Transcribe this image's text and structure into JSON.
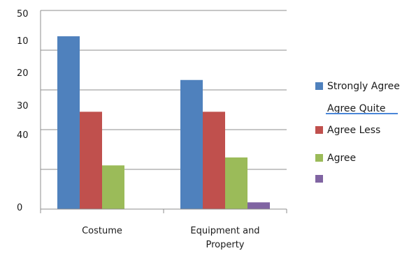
{
  "chart_data": {
    "type": "bar",
    "categories": [
      "Costume",
      "Equipment and Property"
    ],
    "category_lines": [
      [
        "Costume"
      ],
      [
        "Equipment and",
        "Property"
      ]
    ],
    "series": [
      {
        "name": "Strongly Agree",
        "color": "#4F81BD",
        "values": [
          43.5,
          32.5
        ]
      },
      {
        "name": "Agree  Quite",
        "color": "#C0504D",
        "values": [
          24.5,
          24.5
        ]
      },
      {
        "name": "Agree Less",
        "color": "#9BBB59",
        "values": [
          11.0,
          13.0
        ]
      },
      {
        "name": "Agree",
        "color": "#8064A2",
        "values": [
          0,
          1.7
        ]
      }
    ],
    "legend_rows": [
      {
        "marker_color": "#4F81BD",
        "text": "Strongly Agree"
      },
      {
        "marker_color": null,
        "text": "Agree  Quite"
      },
      {
        "marker_color": "#C0504D",
        "text": "Agree Less"
      },
      {
        "marker_color": "#9BBB59",
        "text": "Agree"
      },
      {
        "marker_color": "#8064A2",
        "text": ""
      }
    ],
    "y_tick_labels": [
      "0",
      "10",
      "20",
      "30",
      "40",
      "50"
    ],
    "ylim": [
      0,
      50
    ],
    "grid": true,
    "legend_position": "right",
    "title": "",
    "xlabel": "",
    "ylabel": ""
  }
}
